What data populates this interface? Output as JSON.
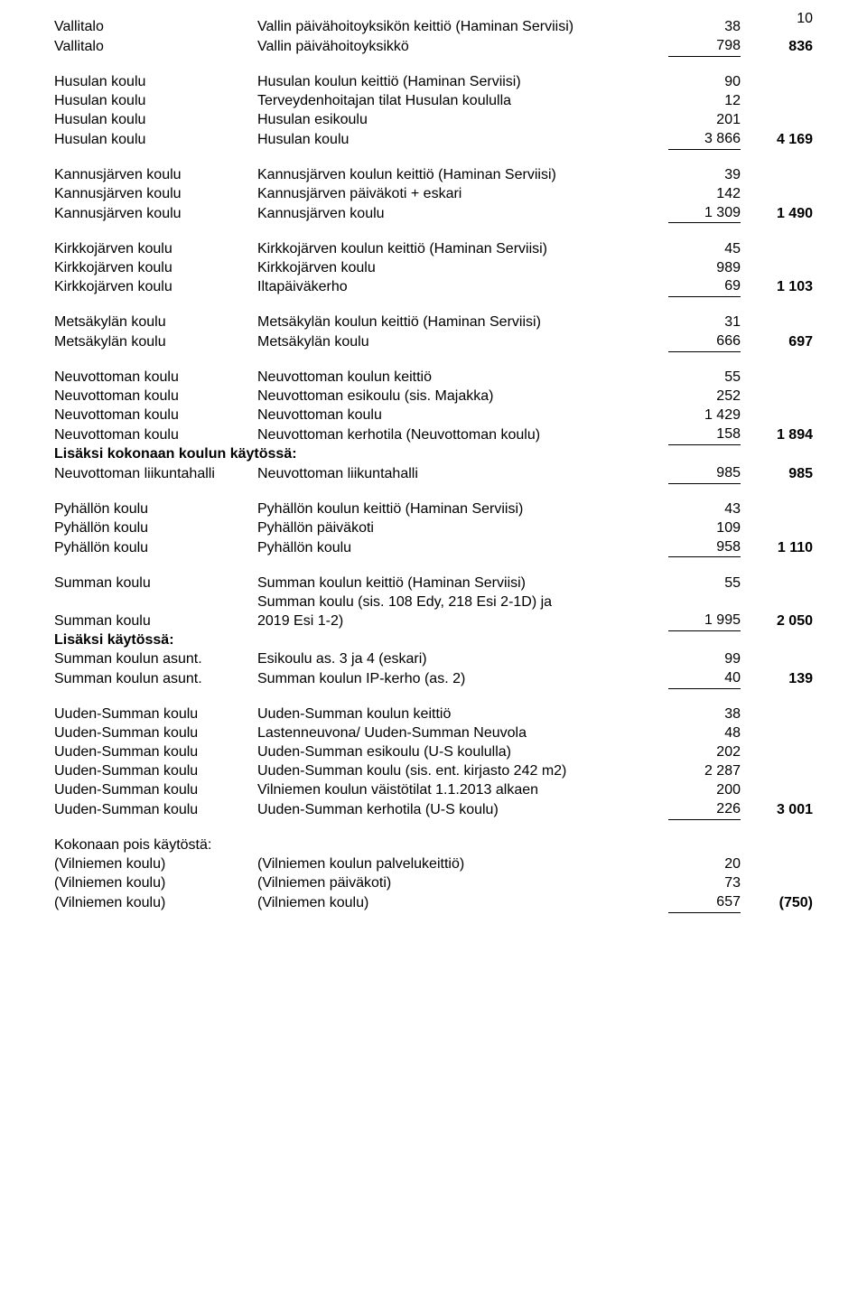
{
  "pageNumber": "10",
  "font": {
    "family": "Arial",
    "size_pt": 12,
    "color": "#000000"
  },
  "background": "#ffffff",
  "sections": [
    {
      "rows": [
        {
          "c1": "Vallitalo",
          "c2": "Vallin päivähoitoyksikön keittiö (Haminan Serviisi)",
          "c3": "38",
          "c4": ""
        },
        {
          "c1": "Vallitalo",
          "c2": "Vallin päivähoitoyksikkö",
          "c3": "798",
          "c4": "836",
          "c3_underline": true
        }
      ]
    },
    {
      "rows": [
        {
          "c1": "Husulan koulu",
          "c2": "Husulan koulun keittiö (Haminan Serviisi)",
          "c3": "90",
          "c4": ""
        },
        {
          "c1": "Husulan koulu",
          "c2": "Terveydenhoitajan tilat Husulan koululla",
          "c3": "12",
          "c4": ""
        },
        {
          "c1": "Husulan koulu",
          "c2": "Husulan esikoulu",
          "c3": "201",
          "c4": ""
        },
        {
          "c1": "Husulan koulu",
          "c2": "Husulan koulu",
          "c3": "3 866",
          "c4": "4 169",
          "c3_underline": true
        }
      ]
    },
    {
      "rows": [
        {
          "c1": "Kannusjärven koulu",
          "c2": "Kannusjärven koulun keittiö (Haminan Serviisi)",
          "c3": "39",
          "c4": ""
        },
        {
          "c1": "Kannusjärven koulu",
          "c2": "Kannusjärven päiväkoti + eskari",
          "c3": "142",
          "c4": ""
        },
        {
          "c1": "Kannusjärven koulu",
          "c2": "Kannusjärven koulu",
          "c3": "1 309",
          "c4": "1 490",
          "c3_underline": true
        }
      ]
    },
    {
      "rows": [
        {
          "c1": "Kirkkojärven koulu",
          "c2": "Kirkkojärven koulun keittiö (Haminan Serviisi)",
          "c3": "45",
          "c4": ""
        },
        {
          "c1": "Kirkkojärven koulu",
          "c2": "Kirkkojärven koulu",
          "c3": "989",
          "c4": ""
        },
        {
          "c1": "Kirkkojärven koulu",
          "c2": "Iltapäiväkerho",
          "c3": "69",
          "c4": "1 103",
          "c3_underline": true
        }
      ]
    },
    {
      "rows": [
        {
          "c1": "Metsäkylän koulu",
          "c2": "Metsäkylän koulun keittiö (Haminan Serviisi)",
          "c3": "31",
          "c4": ""
        },
        {
          "c1": "Metsäkylän koulu",
          "c2": "Metsäkylän koulu",
          "c3": "666",
          "c4": "697",
          "c3_underline": true
        }
      ]
    },
    {
      "rows": [
        {
          "c1": "Neuvottoman koulu",
          "c2": "Neuvottoman koulun keittiö",
          "c3": "55",
          "c4": ""
        },
        {
          "c1": "Neuvottoman koulu",
          "c2": "Neuvottoman esikoulu (sis. Majakka)",
          "c3": "252",
          "c4": ""
        },
        {
          "c1": "Neuvottoman koulu",
          "c2": "Neuvottoman koulu",
          "c3": "1 429",
          "c4": ""
        },
        {
          "c1": "Neuvottoman koulu",
          "c2": "Neuvottoman kerhotila (Neuvottoman koulu)",
          "c3": "158",
          "c4": "1 894",
          "c3_underline": true
        },
        {
          "c1": "Lisäksi kokonaan koulun käytössä:",
          "c1_bold": true,
          "c1_colspan": true,
          "c2": "",
          "c3": "",
          "c4": ""
        },
        {
          "c1": "Neuvottoman liikuntahalli",
          "c2": "Neuvottoman liikuntahalli",
          "c3": "985",
          "c4": "985",
          "c3_underline": true
        }
      ]
    },
    {
      "rows": [
        {
          "c1": "Pyhällön koulu",
          "c2": "Pyhällön koulun keittiö (Haminan Serviisi)",
          "c3": "43",
          "c4": ""
        },
        {
          "c1": "Pyhällön koulu",
          "c2": "Pyhällön päiväkoti",
          "c3": "109",
          "c4": ""
        },
        {
          "c1": "Pyhällön koulu",
          "c2": "Pyhällön koulu",
          "c3": "958",
          "c4": "1 110",
          "c3_underline": true
        }
      ]
    },
    {
      "rows": [
        {
          "c1": "Summan koulu",
          "c2": "Summan koulun keittiö (Haminan Serviisi)",
          "c3": "55",
          "c4": ""
        },
        {
          "c1": "",
          "c2": "Summan koulu (sis. 108 Edy, 218 Esi 2-1D) ja",
          "c3": "",
          "c4": ""
        },
        {
          "c1": "Summan koulu",
          "c2": "2019 Esi 1-2)",
          "c3": "1 995",
          "c4": "2 050",
          "c3_underline": true
        },
        {
          "c1": "Lisäksi käytössä:",
          "c1_bold": true,
          "c2": "",
          "c3": "",
          "c4": ""
        },
        {
          "c1": "Summan koulun asunt.",
          "c2": "Esikoulu  as. 3 ja 4 (eskari)",
          "c3": "99",
          "c4": ""
        },
        {
          "c1": "Summan koulun asunt.",
          "c2": "Summan koulun IP-kerho (as. 2)",
          "c3": "40",
          "c4": "139",
          "c3_underline": true
        }
      ]
    },
    {
      "rows": [
        {
          "c1": "Uuden-Summan koulu",
          "c2": "Uuden-Summan koulun keittiö",
          "c3": "38",
          "c4": ""
        },
        {
          "c1": "Uuden-Summan koulu",
          "c2": "Lastenneuvona/ Uuden-Summan Neuvola",
          "c3": "48",
          "c4": ""
        },
        {
          "c1": "Uuden-Summan koulu",
          "c2": "Uuden-Summan esikoulu (U-S koululla)",
          "c3": "202",
          "c4": ""
        },
        {
          "c1": "Uuden-Summan koulu",
          "c2": "Uuden-Summan koulu (sis. ent. kirjasto 242 m2)",
          "c3": "2 287",
          "c4": ""
        },
        {
          "c1": "Uuden-Summan koulu",
          "c2": "Vilniemen koulun väistötilat 1.1.2013 alkaen",
          "c3": "200",
          "c4": ""
        },
        {
          "c1": "Uuden-Summan koulu",
          "c2": "Uuden-Summan kerhotila (U-S koulu)",
          "c3": "226",
          "c4": "3 001",
          "c3_underline": true
        }
      ]
    },
    {
      "rows": [
        {
          "c1": "Kokonaan pois käytöstä:",
          "c2": "",
          "c3": "",
          "c4": ""
        },
        {
          "c1": "(Vilniemen koulu)",
          "c2": "(Vilniemen koulun palvelukeittiö)",
          "c3": "20",
          "c4": ""
        },
        {
          "c1": "(Vilniemen koulu)",
          "c2": "(Vilniemen päiväkoti)",
          "c3": "73",
          "c4": ""
        },
        {
          "c1": "(Vilniemen koulu)",
          "c2": "(Vilniemen koulu)",
          "c3": "657",
          "c4": "(750)",
          "c3_underline": true
        }
      ]
    }
  ]
}
